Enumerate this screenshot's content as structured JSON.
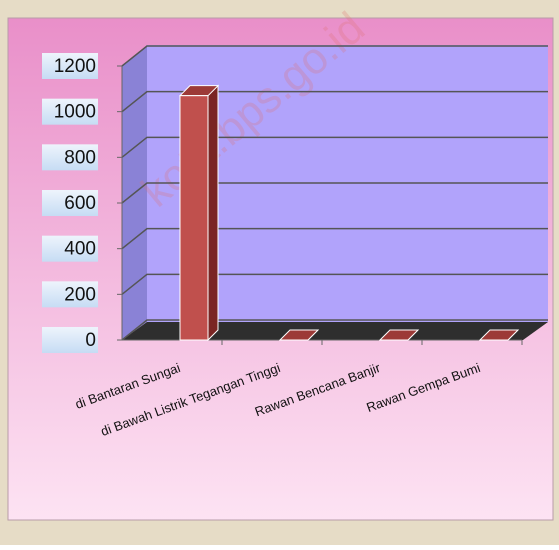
{
  "chart_data": {
    "type": "bar",
    "watermark": "kota.bps.go.id",
    "categories": [
      "di Bantaran Sungai",
      "di Bawah  Listrik Tegangan Tinggi",
      "Rawan Bencana Banjir",
      "Rawan Gempa Bumi"
    ],
    "values": [
      1070,
      0,
      0,
      0
    ],
    "color": "#c0504d",
    "ylim": [
      0,
      1200
    ],
    "yticks": [
      0,
      200,
      400,
      600,
      800,
      1000,
      1200
    ],
    "grid": true
  }
}
